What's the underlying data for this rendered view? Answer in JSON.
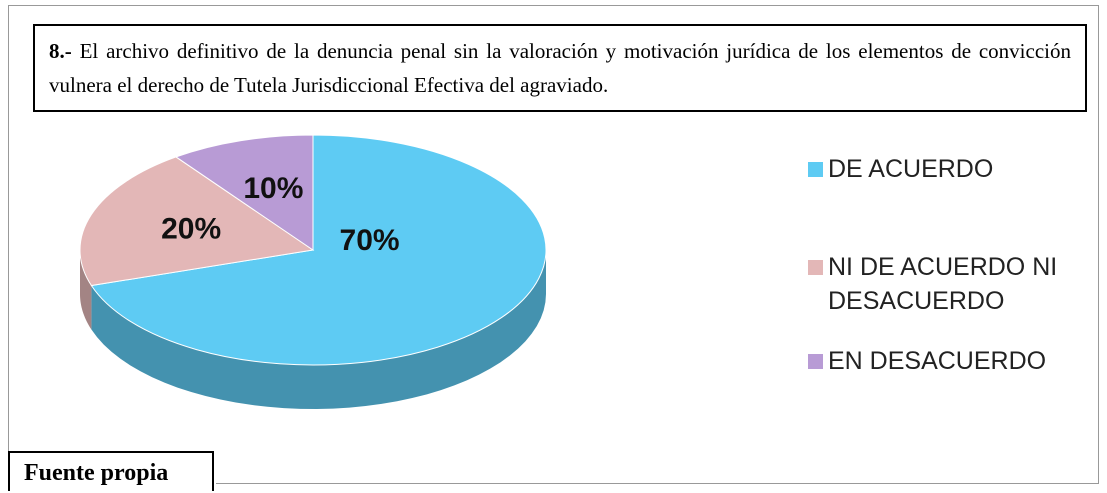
{
  "header": {
    "number": "8.-",
    "question": "El archivo definitivo de la denuncia penal sin la valoración y motivación jurídica de los elementos de convicción vulnera el derecho de Tutela Jurisdiccional Efectiva del agraviado."
  },
  "chart_data": {
    "type": "pie",
    "categories": [
      "DE ACUERDO",
      "NI DE ACUERDO NI DESACUERDO",
      "EN DESACUERDO"
    ],
    "values": [
      70,
      20,
      10
    ],
    "value_labels": [
      "70%",
      "20%",
      "10%"
    ],
    "colors": [
      "#5ecbf3",
      "#e3b7b7",
      "#b89bd5"
    ],
    "legend": "right"
  },
  "footer": {
    "source": "Fuente propia"
  }
}
